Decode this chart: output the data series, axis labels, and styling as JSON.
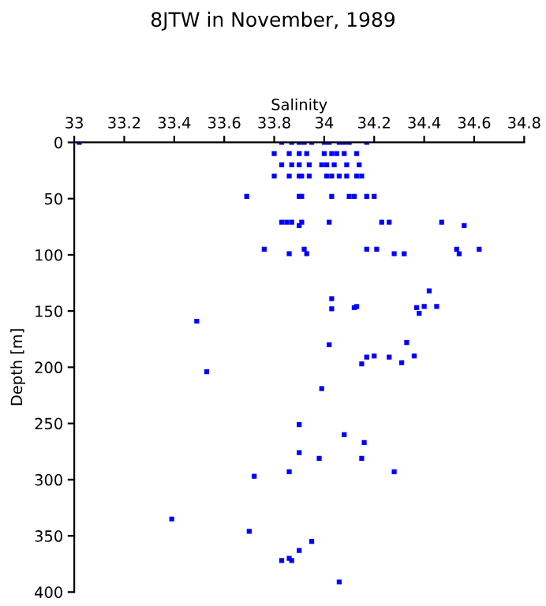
{
  "chart_data": {
    "type": "scatter",
    "title": "8JTW in November, 1989",
    "xlabel": "Salinity",
    "ylabel": "Depth [m]",
    "xlim": [
      33,
      34.8
    ],
    "xticks": [
      33,
      33.2,
      33.4,
      33.6,
      33.8,
      34,
      34.2,
      34.4,
      34.6,
      34.8
    ],
    "ylim": [
      400,
      0
    ],
    "yticks": [
      0,
      50,
      100,
      150,
      200,
      250,
      300,
      350,
      400
    ],
    "grid": false,
    "marker": "square",
    "series": [
      {
        "color": "#0000ff",
        "x": [
          33.02,
          33.83,
          33.87,
          33.9,
          33.92,
          33.95,
          34.0,
          34.02,
          34.06,
          34.08,
          34.1,
          34.17,
          33.8,
          33.86,
          33.9,
          33.93,
          34.0,
          34.03,
          34.05,
          34.08,
          34.13,
          33.83,
          33.87,
          33.9,
          33.94,
          33.99,
          34.01,
          34.04,
          34.09,
          34.14,
          33.8,
          33.86,
          33.9,
          33.91,
          33.94,
          34.01,
          34.03,
          34.06,
          34.09,
          34.13,
          34.15,
          33.69,
          33.9,
          33.91,
          34.03,
          34.1,
          34.12,
          34.17,
          34.2,
          33.83,
          33.85,
          33.87,
          33.91,
          34.02,
          34.23,
          34.26,
          34.47,
          33.9,
          34.56,
          33.76,
          33.92,
          34.17,
          34.21,
          34.62,
          34.53,
          33.86,
          33.93,
          34.28,
          34.32,
          34.54,
          33.49,
          33.53,
          34.03,
          34.03,
          34.12,
          34.13,
          34.37,
          34.38,
          34.4,
          34.42,
          34.45,
          34.02,
          34.15,
          34.17,
          34.2,
          34.26,
          34.31,
          34.33,
          34.36,
          33.99,
          33.9,
          34.08,
          34.16,
          33.9,
          33.98,
          34.15,
          34.28,
          33.86,
          33.72,
          33.39,
          33.7,
          33.95,
          33.9,
          33.83,
          33.86,
          33.87,
          34.06
        ],
        "values": [
          0,
          0,
          0,
          0,
          0,
          0,
          0,
          0,
          0,
          0,
          0,
          0,
          10,
          10,
          10,
          10,
          10,
          10,
          10,
          10,
          10,
          20,
          20,
          20,
          20,
          20,
          20,
          20,
          20,
          20,
          30,
          30,
          30,
          30,
          30,
          30,
          30,
          30,
          30,
          30,
          30,
          48,
          48,
          48,
          48,
          48,
          48,
          48,
          48,
          71,
          71,
          71,
          71,
          71,
          71,
          71,
          71,
          74,
          74,
          95,
          95,
          95,
          95,
          95,
          95,
          99,
          99,
          99,
          99,
          99,
          159,
          204,
          139,
          148,
          147,
          146,
          147,
          152,
          146,
          132,
          146,
          180,
          197,
          191,
          190,
          191,
          196,
          178,
          190,
          219,
          251,
          260,
          267,
          276,
          281,
          281,
          293,
          293,
          297,
          335,
          346,
          355,
          363,
          372,
          370,
          372,
          391
        ]
      }
    ]
  }
}
